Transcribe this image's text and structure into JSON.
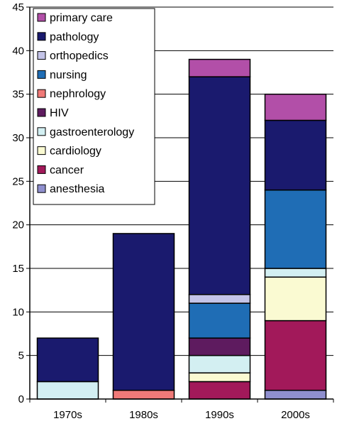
{
  "chart_data": {
    "type": "bar",
    "stacked": true,
    "title": "",
    "xlabel": "",
    "ylabel": "",
    "ylim": [
      0,
      45
    ],
    "yticks": [
      0,
      5,
      10,
      15,
      20,
      25,
      30,
      35,
      40,
      45
    ],
    "grid": true,
    "legend_position": "top-left",
    "categories": [
      "1970s",
      "1980s",
      "1990s",
      "2000s"
    ],
    "series": [
      {
        "name": "anesthesia",
        "color": "#8f8fce",
        "values": [
          0,
          0,
          0,
          1
        ]
      },
      {
        "name": "cancer",
        "color": "#a2195a",
        "values": [
          0,
          0,
          2,
          8
        ]
      },
      {
        "name": "cardiology",
        "color": "#fafad2",
        "values": [
          0,
          0,
          1,
          5
        ]
      },
      {
        "name": "gastroenterology",
        "color": "#d3eff2",
        "values": [
          2,
          0,
          2,
          1
        ]
      },
      {
        "name": "HIV",
        "color": "#5e1b5f",
        "values": [
          0,
          0,
          2,
          0
        ]
      },
      {
        "name": "nephrology",
        "color": "#f07a78",
        "values": [
          0,
          1,
          0,
          0
        ]
      },
      {
        "name": "nursing",
        "color": "#1f6db5",
        "values": [
          0,
          0,
          4,
          9
        ]
      },
      {
        "name": "orthopedics",
        "color": "#c4c4e8",
        "values": [
          0,
          0,
          1,
          0
        ]
      },
      {
        "name": "pathology",
        "color": "#1a1a6e",
        "values": [
          5,
          18,
          25,
          8
        ]
      },
      {
        "name": "primary care",
        "color": "#b24fa8",
        "values": [
          0,
          0,
          2,
          3
        ]
      }
    ]
  }
}
